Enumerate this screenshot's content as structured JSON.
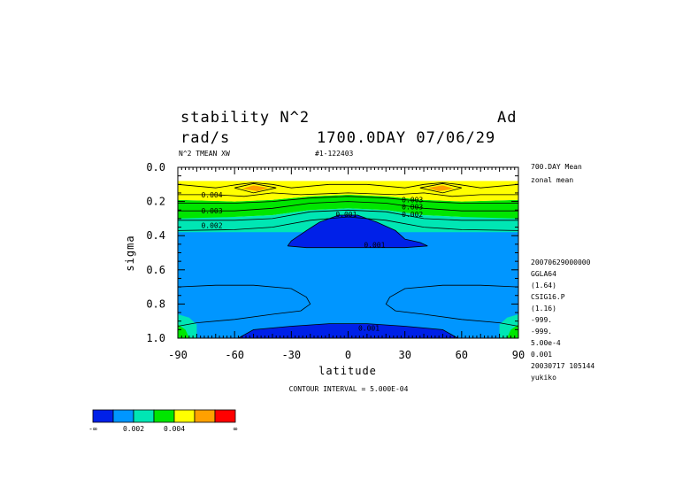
{
  "chart_data": {
    "type": "contour",
    "title": "stability N^2",
    "title_right": "Ad",
    "units": "rad/s",
    "time_label": "1700.0DAY 07/06/29",
    "subtitle": "N^2 TMEAN XW",
    "run_id": "#1-122403",
    "xlabel": "latitude",
    "ylabel": "sigma",
    "xlim": [
      -90,
      90
    ],
    "ylim": [
      0.0,
      1.0
    ],
    "x_ticks": [
      "-90",
      "-60",
      "-30",
      "0",
      "30",
      "60",
      "90"
    ],
    "y_ticks": [
      "0.0",
      "0.2",
      "0.4",
      "0.6",
      "0.8",
      "1.0"
    ],
    "contour_interval_text": "CONTOUR INTERVAL = 5.000E-04",
    "contour_labels": [
      "0.004",
      "0.003",
      "0.002",
      "0.001",
      "0.001",
      "0.003",
      "0.003",
      "0.002",
      "0.001"
    ],
    "right_info_top": [
      "700.DAY Mean",
      "zonal mean"
    ],
    "right_info_bottom": [
      "20070629000000",
      "GGLA64",
      "(1.64)",
      "CSIG16.P",
      "(1.16)",
      "-999.",
      "-999.",
      "5.00e-4",
      "0.001",
      "20030717 105144",
      "yukiko"
    ],
    "colorbar": {
      "colors": [
        "#0020e8",
        "#0096ff",
        "#00e6b4",
        "#00e600",
        "#ffff00",
        "#ffa000",
        "#ff0000"
      ],
      "labels": [
        "-∞",
        "0.002",
        "0.004",
        "∞"
      ]
    }
  }
}
